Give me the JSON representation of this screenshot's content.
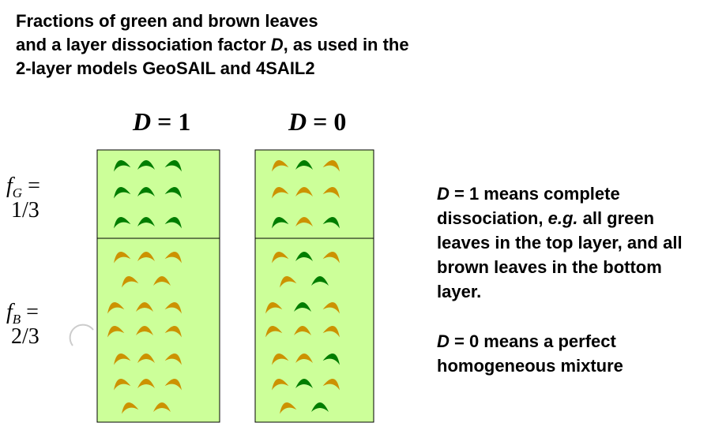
{
  "title": {
    "line1": "Fractions of green and brown leaves",
    "line2_pre": "and a layer dissociation factor ",
    "line2_var": "D",
    "line2_post": ", as used in the",
    "line3": "2-layer models GeoSAIL and 4SAIL2"
  },
  "columns": [
    {
      "var": "D",
      "eq": " = 1"
    },
    {
      "var": "D",
      "eq": " = 0"
    }
  ],
  "fractions": {
    "green": {
      "sym": "f",
      "sub": "G",
      "eq": " =",
      "value": "1/3"
    },
    "brown": {
      "sym": "f",
      "sub": "B",
      "eq": " =",
      "value": "2/3"
    }
  },
  "notes": {
    "note1_var": "D",
    "note1_a": " = 1 means complete dissociation, ",
    "note1_eg": "e.g.",
    "note1_b": " all green leaves in the top layer, and all brown leaves in the bottom layer.",
    "note2_var": "D",
    "note2_text": " = 0 means a perfect homogeneous mixture"
  },
  "colors": {
    "background_fill": "#ccff99",
    "green_leaf": "#007d00",
    "brown_leaf": "#cc9200",
    "outline": "#000000"
  },
  "leaves": {
    "d1": [
      [
        "green",
        "green",
        "green"
      ],
      [
        "green",
        "green",
        "green"
      ],
      [
        "green",
        "green",
        "green"
      ],
      [
        "brown",
        "brown",
        "brown"
      ],
      [
        "brown",
        "brown"
      ],
      [
        "brown",
        "brown",
        "brown"
      ],
      [
        "brown",
        "brown",
        "brown"
      ],
      [
        "brown",
        "brown",
        "brown"
      ],
      [
        "brown",
        "brown",
        "brown"
      ],
      [
        "brown",
        "brown"
      ]
    ],
    "d0": [
      [
        "brown",
        "green",
        "brown"
      ],
      [
        "brown",
        "brown",
        "brown"
      ],
      [
        "green",
        "brown",
        "green"
      ],
      [
        "brown",
        "green",
        "brown"
      ],
      [
        "brown",
        "green"
      ],
      [
        "brown",
        "green",
        "brown"
      ],
      [
        "brown",
        "brown",
        "brown"
      ],
      [
        "brown",
        "brown",
        "green"
      ],
      [
        "brown",
        "green",
        "brown"
      ],
      [
        "brown",
        "green"
      ]
    ]
  }
}
